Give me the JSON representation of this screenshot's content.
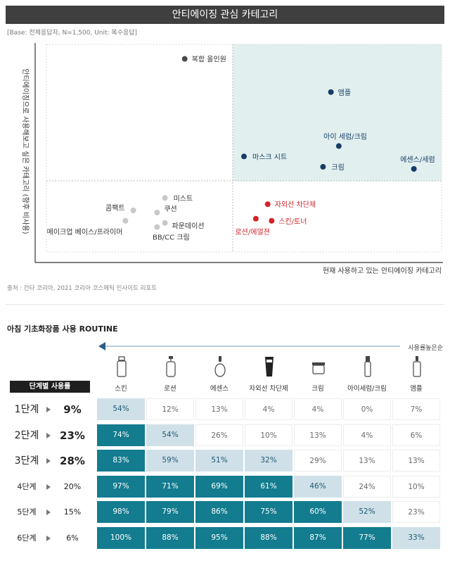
{
  "title": "안티에이징 관심 카테고리",
  "base_note": "[Base: 전체응답자, N=1,500, Unit: 복수응답]",
  "source": "출처 : 칸타 코리아, 2021 코리아 코스메틱 인사이트 리포트",
  "colors": {
    "navy": "#173d66",
    "red": "#d3252a",
    "gray": "#c8c8c8",
    "dark": "#4a4a4a",
    "quadrant": "#e1efee"
  },
  "chart_data": [
    {
      "type": "scatter",
      "title": "안티에이징 관심 카테고리",
      "xlabel": "현재 사용하고 있는 안티에이징 카테고리",
      "ylabel": "안티에이징으로 사용해보고 싶은 카테고리 (향후 비사용)",
      "points": [
        {
          "label": "복합 올인원",
          "x": 0.35,
          "y": 0.93,
          "group": "dark"
        },
        {
          "label": "앰플",
          "x": 0.72,
          "y": 0.77,
          "group": "navy"
        },
        {
          "label": "아이 세럼/크림",
          "x": 0.74,
          "y": 0.51,
          "group": "navy"
        },
        {
          "label": "마스크 시트",
          "x": 0.5,
          "y": 0.46,
          "group": "navy"
        },
        {
          "label": "크림",
          "x": 0.7,
          "y": 0.41,
          "group": "navy"
        },
        {
          "label": "에센스/세럼",
          "x": 0.93,
          "y": 0.4,
          "group": "navy"
        },
        {
          "label": "미스트",
          "x": 0.3,
          "y": 0.26,
          "group": "gray"
        },
        {
          "label": "콤팩트",
          "x": 0.22,
          "y": 0.2,
          "group": "gray"
        },
        {
          "label": "쿠션",
          "x": 0.28,
          "y": 0.19,
          "group": "gray"
        },
        {
          "label": "메이크업 베이스/프라이머",
          "x": 0.2,
          "y": 0.15,
          "group": "gray"
        },
        {
          "label": "파운데이션",
          "x": 0.3,
          "y": 0.14,
          "group": "gray"
        },
        {
          "label": "BB/CC 크림",
          "x": 0.28,
          "y": 0.12,
          "group": "gray"
        },
        {
          "label": "자외선 차단제",
          "x": 0.56,
          "y": 0.23,
          "group": "red"
        },
        {
          "label": "로션/에멀젼",
          "x": 0.53,
          "y": 0.16,
          "group": "red"
        },
        {
          "label": "스킨/토너",
          "x": 0.57,
          "y": 0.15,
          "group": "red"
        }
      ]
    },
    {
      "type": "heatmap",
      "title": "아침 기초화장품 사용 ROUTINE",
      "arrow_label": "사용률높은순",
      "step_header": "단계별 사용률",
      "products": [
        "스킨",
        "로션",
        "에센스",
        "자외선 차단제",
        "크림",
        "아이세럼/크림",
        "앰플"
      ],
      "rows": [
        {
          "step": "1단계",
          "usage": "9%",
          "values": [
            "54%",
            "12%",
            "13%",
            "4%",
            "4%",
            "0%",
            "7%"
          ]
        },
        {
          "step": "2단계",
          "usage": "23%",
          "values": [
            "74%",
            "54%",
            "26%",
            "10%",
            "13%",
            "4%",
            "6%"
          ]
        },
        {
          "step": "3단계",
          "usage": "28%",
          "values": [
            "83%",
            "59%",
            "51%",
            "32%",
            "29%",
            "13%",
            "13%"
          ]
        },
        {
          "step": "4단계",
          "usage": "20%",
          "values": [
            "97%",
            "71%",
            "69%",
            "61%",
            "46%",
            "24%",
            "10%"
          ]
        },
        {
          "step": "5단계",
          "usage": "15%",
          "values": [
            "98%",
            "79%",
            "86%",
            "75%",
            "60%",
            "52%",
            "23%"
          ]
        },
        {
          "step": "6단계",
          "usage": "6%",
          "values": [
            "100%",
            "88%",
            "95%",
            "88%",
            "87%",
            "77%",
            "33%"
          ]
        }
      ]
    }
  ]
}
